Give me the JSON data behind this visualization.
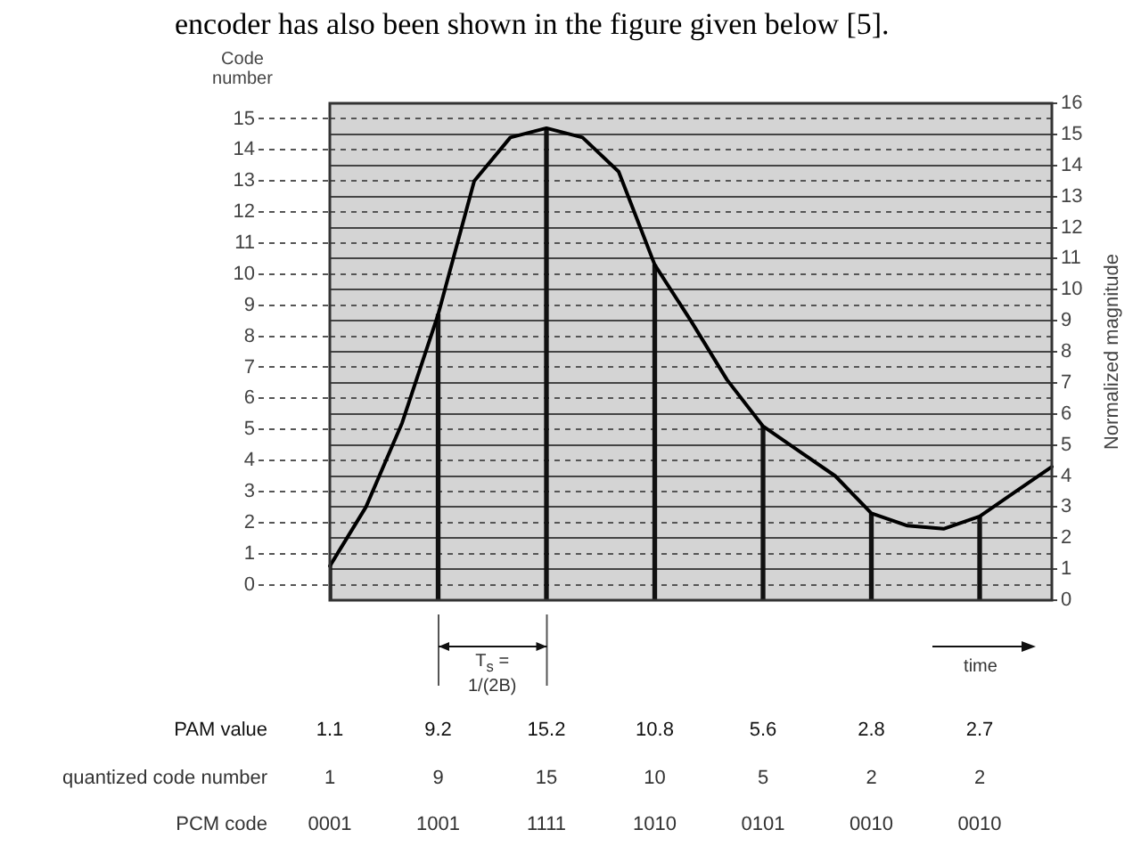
{
  "chart_data": {
    "type": "line",
    "ylabel": "Code number",
    "y2label": "Normalized magnitude",
    "annotations": [
      "encoder has also been shown in the figure given below [5].",
      "T$_{s}$ = 1/(2B)",
      "time",
      "quantized code number",
      "1",
      "9",
      "15",
      "10",
      "5",
      "2",
      "2",
      "PCM code",
      "0001",
      "1001",
      "1111",
      "1010",
      "0101",
      "0010",
      "0010"
    ],
    "categories": [
      null,
      null,
      null,
      null,
      null,
      null,
      null,
      null,
      null,
      null,
      null,
      null,
      null,
      null,
      null,
      null,
      null,
      null,
      null,
      null,
      null
    ],
    "ylim": [
      -0.5,
      15.5
    ],
    "yticks": [
      0,
      1,
      2,
      3,
      4,
      5,
      6,
      7,
      8,
      9,
      10,
      11,
      12,
      13,
      14,
      15
    ],
    "y2lim": [
      0,
      16
    ],
    "y2ticks": [
      0,
      1,
      2,
      3,
      4,
      5,
      6,
      7,
      8,
      9,
      10,
      11,
      12,
      13,
      14,
      15,
      16
    ],
    "grid": "y",
    "tick_labels": "y",
    "marker": "none",
    "series": [
      {
        "color": "#000000",
        "axis": "y2",
        "values": [
          1.1,
          3.0,
          5.7,
          9.2,
          13.5,
          14.9,
          15.2,
          14.9,
          13.8,
          10.8,
          9.0,
          7.1,
          5.6,
          4.8,
          4.0,
          2.8,
          2.4,
          2.3,
          2.7,
          3.5,
          4.3
        ]
      },
      {
        "type": "bar",
        "name": "PAM value",
        "color": "#111111",
        "axis": "y2",
        "values": [
          1.1,
          null,
          null,
          9.2,
          null,
          null,
          15.2,
          null,
          null,
          10.8,
          null,
          null,
          5.6,
          null,
          null,
          2.8,
          null,
          null,
          2.7,
          null,
          null
        ],
        "value_labels": [
          "1.1",
          null,
          null,
          "9.2",
          null,
          null,
          "15.2",
          null,
          null,
          "10.8",
          null,
          null,
          "5.6",
          null,
          null,
          "2.8",
          null,
          null,
          "2.7",
          null,
          null
        ]
      }
    ]
  }
}
